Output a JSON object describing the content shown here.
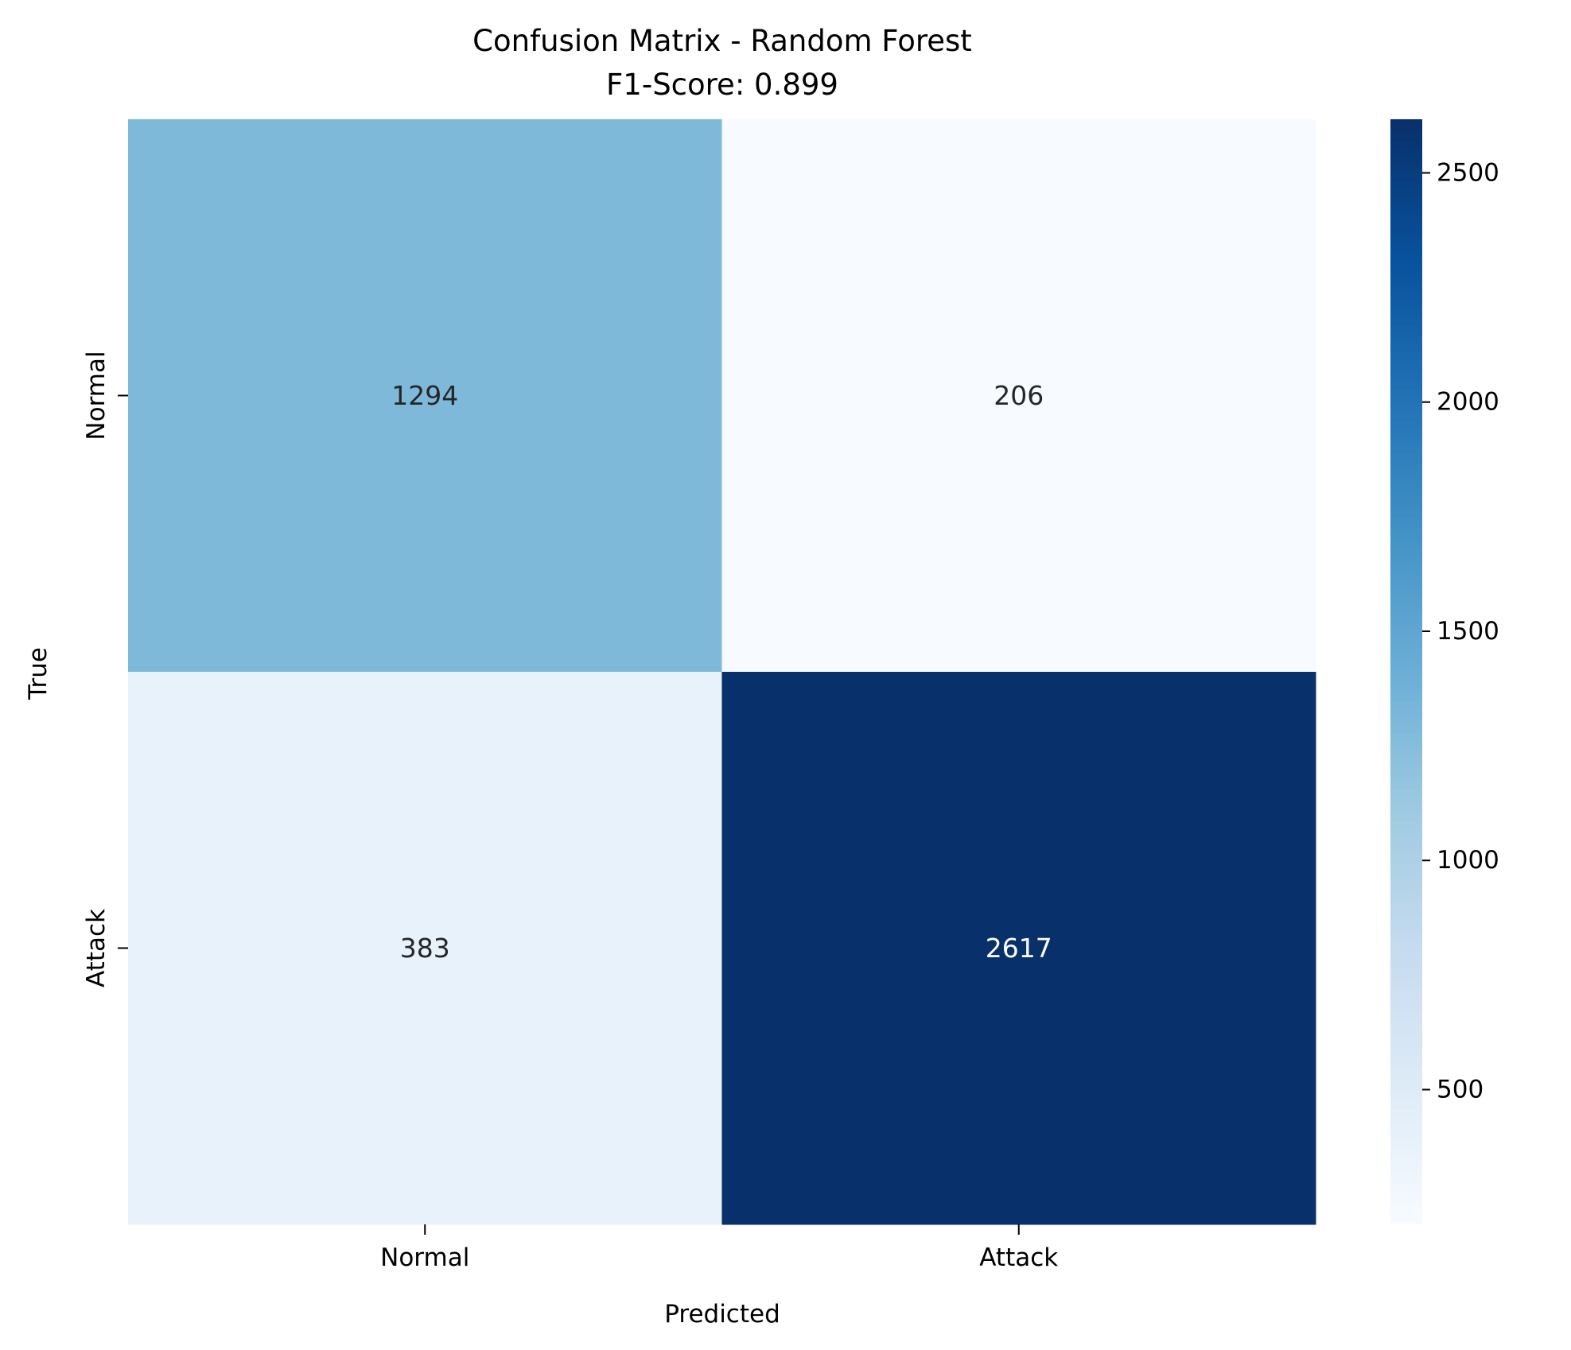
{
  "chart_data": {
    "type": "heatmap",
    "title": "Confusion Matrix - Random Forest",
    "subtitle": "F1-Score: 0.899",
    "xlabel": "Predicted",
    "ylabel": "True",
    "x_categories": [
      "Normal",
      "Attack"
    ],
    "y_categories": [
      "Normal",
      "Attack"
    ],
    "values": [
      [
        1294,
        206
      ],
      [
        383,
        2617
      ]
    ],
    "colormap": "Blues",
    "colorbar": {
      "range": [
        206,
        2617
      ],
      "ticks": [
        500,
        1000,
        1500,
        2000,
        2500
      ],
      "tick_labels": [
        "500",
        "1000",
        "1500",
        "2000",
        "2500"
      ]
    },
    "colors": {
      "low": "#f7fbff",
      "high": "#08306b",
      "text_dark": "#262626",
      "text_light": "#ffffff"
    },
    "grid": false
  }
}
